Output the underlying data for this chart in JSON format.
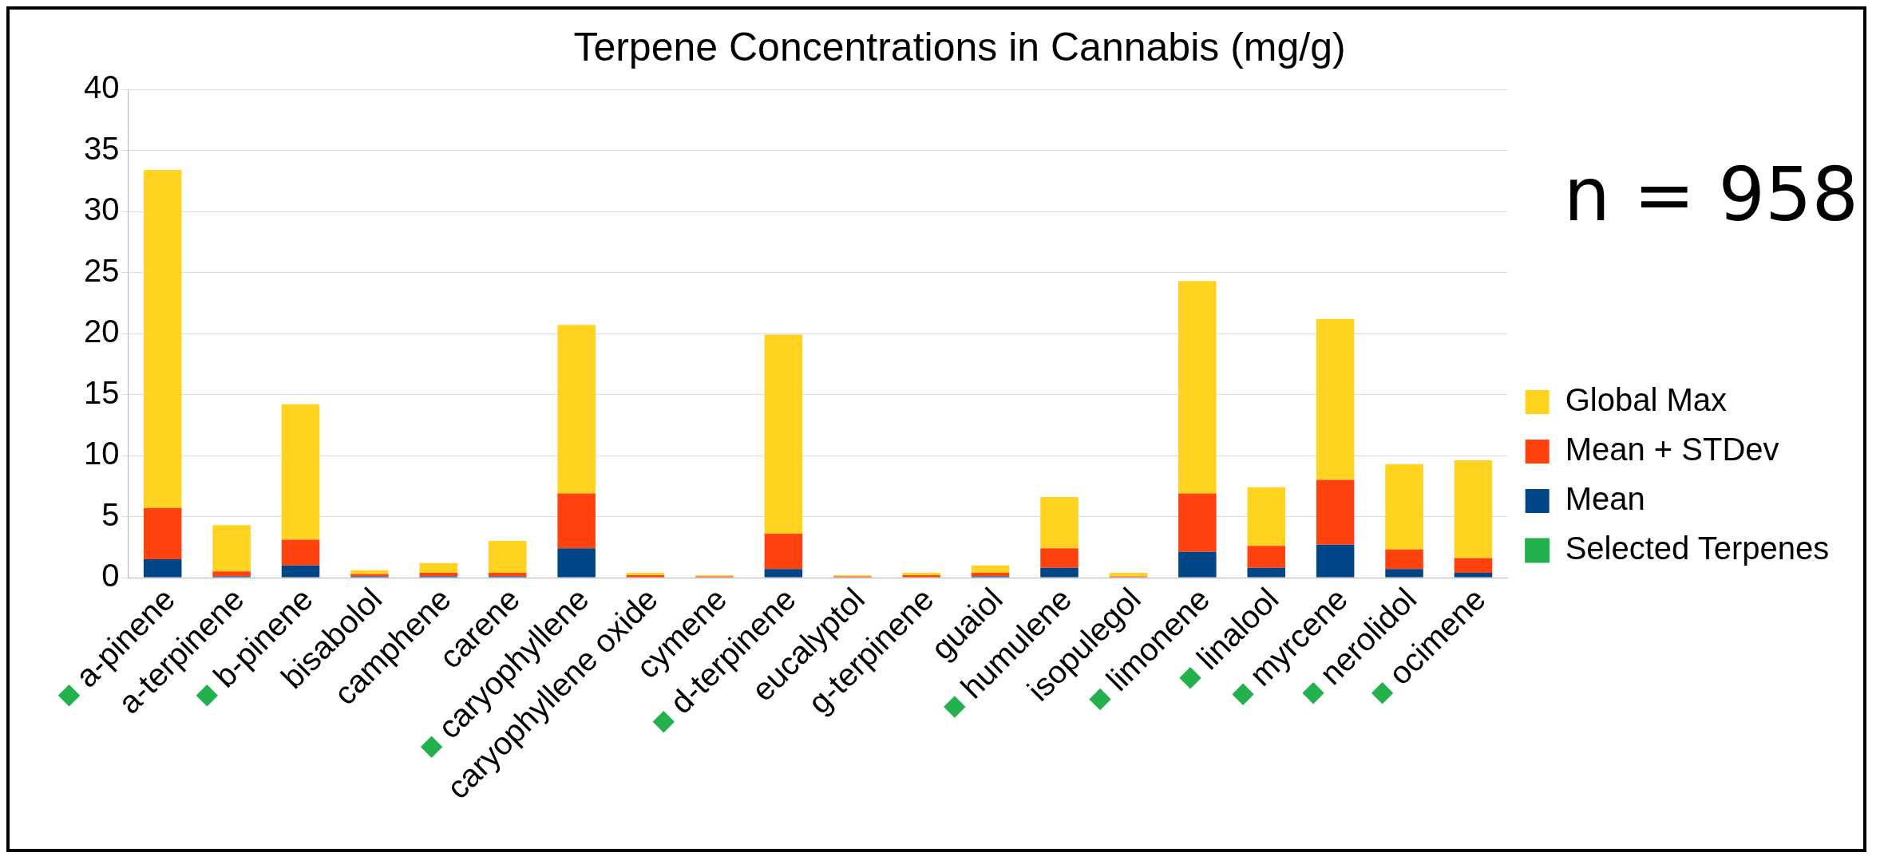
{
  "chart_data": {
    "type": "bar",
    "title": "Terpene Concentrations in Cannabis (mg/g)",
    "categories": [
      "■ a-pinene",
      "a-terpinene",
      "■ b-pinene",
      "bisabolol",
      "camphene",
      "carene",
      "■ caryophyllene",
      "caryophyllene oxide",
      "cymene",
      "■ d-terpinene",
      "eucalyptol",
      "g-terpinene",
      "guaiol",
      "■ humulene",
      "isopulegol",
      "■ limonene",
      "■ linalool",
      "■ myrcene",
      "■ nerolidol",
      "■ ocimene"
    ],
    "stacked": true,
    "series": [
      {
        "name": "Mean",
        "color": "#004586",
        "values": [
          1.5,
          0.1,
          1.0,
          0.1,
          0.1,
          0.1,
          2.4,
          0,
          0,
          0.7,
          0,
          0,
          0.1,
          0.8,
          0,
          2.1,
          0.8,
          2.7,
          0.7,
          0.4
        ]
      },
      {
        "name": "Mean + STDev",
        "color": "#ff420e",
        "values": [
          4.2,
          0.4,
          2.1,
          0.2,
          0.3,
          0.3,
          4.5,
          0.2,
          0.1,
          2.9,
          0.1,
          0.2,
          0.3,
          1.6,
          0.1,
          4.8,
          1.8,
          5.3,
          1.6,
          1.2
        ]
      },
      {
        "name": "Global Max",
        "color": "#ffd320",
        "values": [
          27.7,
          3.8,
          11.1,
          0.3,
          0.8,
          2.6,
          13.8,
          0.2,
          0.1,
          16.3,
          0.1,
          0.2,
          0.6,
          4.2,
          0.3,
          17.4,
          4.8,
          13.2,
          7.0,
          8.0
        ]
      },
      {
        "name": "Selected Terpenes",
        "type": "scatter",
        "color": "#22b14c",
        "values": [
          null,
          null,
          null,
          null,
          null,
          null,
          null,
          null,
          null,
          null,
          null,
          null,
          null,
          null,
          null,
          null,
          null,
          null,
          null,
          null
        ]
      }
    ],
    "ylim": [
      0,
      40
    ],
    "yticks": [
      0,
      5,
      10,
      15,
      20,
      25,
      30,
      35,
      40
    ],
    "grid": "y",
    "legend": "right",
    "annotations": [
      "n = 958"
    ]
  }
}
